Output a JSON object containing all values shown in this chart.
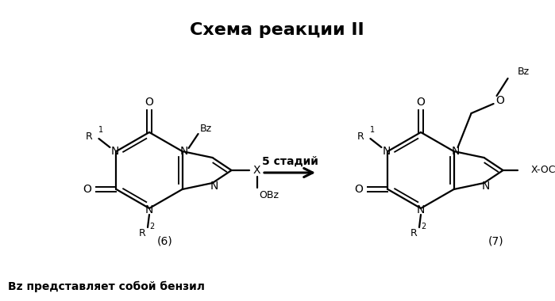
{
  "title": "Схема реакции II",
  "title_fontsize": 16,
  "arrow_label": "5 стадий",
  "compound6_label": "(6)",
  "compound7_label": "(7)",
  "footnote": "Bz представляет собой бензил",
  "bg_color": "#ffffff",
  "text_color": "#000000",
  "figsize": [
    6.99,
    3.8
  ],
  "dpi": 100
}
